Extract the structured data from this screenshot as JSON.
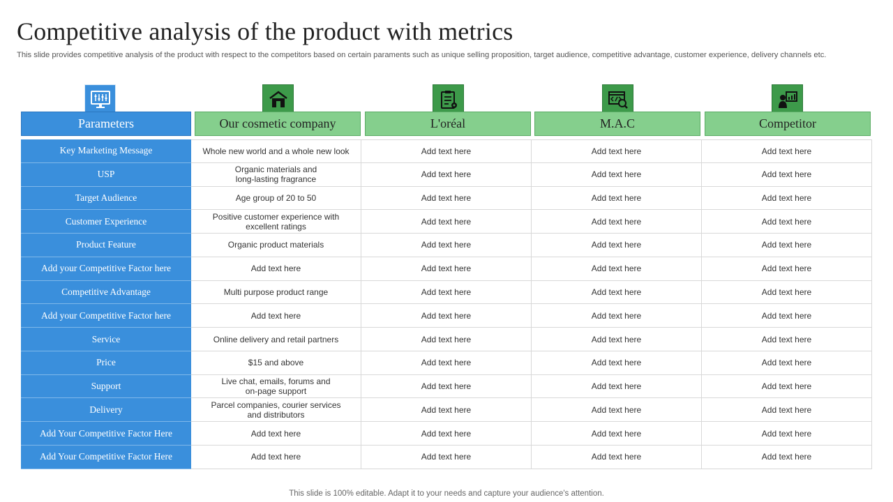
{
  "title": "Competitive analysis of the product with metrics",
  "subtitle": "This slide provides competitive analysis of the product with respect to the competitors based on certain paraments such as unique selling proposition, target audience, competitive advantage, customer experience, delivery channels etc.",
  "columns": [
    {
      "label": "Parameters",
      "icon": "dashboard-monitor-icon"
    },
    {
      "label": "Our cosmetic company",
      "icon": "store-icon"
    },
    {
      "label": "L'oréal",
      "icon": "clipboard-settings-icon"
    },
    {
      "label": "M.A.C",
      "icon": "code-search-icon"
    },
    {
      "label": "Competitor",
      "icon": "presenter-chart-icon"
    }
  ],
  "rows": [
    {
      "param": "Key Marketing Message",
      "cells": [
        "Whole new world and a whole new look",
        "Add text here",
        "Add text here",
        "Add text here"
      ]
    },
    {
      "param": "USP",
      "cells": [
        "Organic materials and long-lasting fragrance",
        "Add text here",
        "Add text here",
        "Add text here"
      ]
    },
    {
      "param": "Target Audience",
      "cells": [
        "Age group of 20 to 50",
        "Add text here",
        "Add text here",
        "Add text here"
      ]
    },
    {
      "param": "Customer Experience",
      "cells": [
        "Positive customer experience with excellent ratings",
        "Add text here",
        "Add text here",
        "Add text here"
      ]
    },
    {
      "param": "Product Feature",
      "cells": [
        "Organic product materials",
        "Add text here",
        "Add text here",
        "Add text here"
      ]
    },
    {
      "param": "Add your Competitive Factor here",
      "cells": [
        "Add text here",
        "Add text here",
        "Add text here",
        "Add text here"
      ]
    },
    {
      "param": "Competitive Advantage",
      "cells": [
        "Multi purpose product range",
        "Add text here",
        "Add text here",
        "Add text here"
      ]
    },
    {
      "param": "Add your Competitive Factor here",
      "cells": [
        "Add text here",
        "Add text here",
        "Add text here",
        "Add text here"
      ]
    },
    {
      "param": "Service",
      "cells": [
        "Online delivery and retail partners",
        "Add text here",
        "Add text here",
        "Add text here"
      ]
    },
    {
      "param": "Price",
      "cells": [
        "$15 and above",
        "Add text here",
        "Add text here",
        "Add text here"
      ]
    },
    {
      "param": "Support",
      "cells": [
        "Live chat, emails, forums and on-page support",
        "Add text here",
        "Add text here",
        "Add text here"
      ]
    },
    {
      "param": "Delivery",
      "cells": [
        "Parcel companies, courier services and distributors",
        "Add text here",
        "Add text here",
        "Add text here"
      ]
    },
    {
      "param": "Add Your Competitive Factor Here",
      "cells": [
        "Add text here",
        "Add text here",
        "Add text here",
        "Add text here"
      ]
    },
    {
      "param": "Add Your Competitive Factor Here",
      "cells": [
        "Add text here",
        "Add text here",
        "Add text here",
        "Add text here"
      ]
    }
  ],
  "footer": "This slide is 100% editable. Adapt it to your needs and capture your audience's attention.",
  "colors": {
    "blue": "#3a8fdc",
    "green": "#85cf8d",
    "dark_green": "#3d9a4a"
  }
}
